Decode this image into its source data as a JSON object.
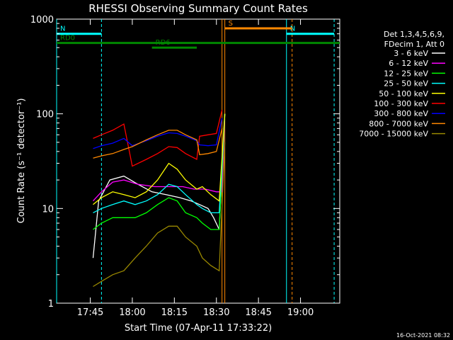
{
  "chart_data": {
    "type": "line",
    "title": "RHESSI Observing Summary Count Rates",
    "xlabel": "Start Time (07-Apr-11 17:33:22)",
    "ylabel": "Count Rate (s⁻¹ detector⁻¹)",
    "y_scale": "log",
    "ylim": [
      1,
      1000
    ],
    "xlim_minutes": [
      "17:33",
      "19:14"
    ],
    "x_tick_labels": [
      "17:45",
      "18:00",
      "18:15",
      "18:30",
      "18:45",
      "19:00"
    ],
    "y_tick_labels": [
      "1",
      "10",
      "100",
      "1000"
    ],
    "timestamp": "16-Oct-2021 08:32",
    "legend": {
      "header": [
        "Det 1,3,4,5,6,9,",
        "FDecim 1, Att 0"
      ],
      "placement": "right"
    },
    "series": [
      {
        "name": "3 - 6 keV",
        "color": "#ffffff",
        "points": [
          [
            "17:46",
            3
          ],
          [
            "17:48",
            12
          ],
          [
            "17:52",
            20
          ],
          [
            "17:57",
            22
          ],
          [
            "18:02",
            18
          ],
          [
            "18:07",
            15
          ],
          [
            "18:12",
            14
          ],
          [
            "18:17",
            13
          ],
          [
            "18:21",
            12
          ],
          [
            "18:24",
            11
          ],
          [
            "18:27",
            10
          ],
          [
            "18:29",
            8
          ],
          [
            "18:31",
            6
          ],
          [
            "18:33",
            100
          ]
        ]
      },
      {
        "name": "6 - 12 keV",
        "color": "#ff00ff",
        "points": [
          [
            "17:46",
            12
          ],
          [
            "17:49",
            15
          ],
          [
            "17:53",
            19
          ],
          [
            "17:57",
            20
          ],
          [
            "18:02",
            18
          ],
          [
            "18:08",
            17
          ],
          [
            "18:13",
            17
          ],
          [
            "18:18",
            17
          ],
          [
            "18:22",
            16
          ],
          [
            "18:26",
            16
          ],
          [
            "18:30",
            15
          ],
          [
            "18:32",
            15
          ],
          [
            "18:33",
            100
          ]
        ]
      },
      {
        "name": "12 - 25 keV",
        "color": "#00ff00",
        "points": [
          [
            "17:46",
            6
          ],
          [
            "17:49",
            7
          ],
          [
            "17:53",
            8
          ],
          [
            "17:57",
            8
          ],
          [
            "18:01",
            8
          ],
          [
            "18:05",
            9
          ],
          [
            "18:09",
            11
          ],
          [
            "18:13",
            13
          ],
          [
            "18:16",
            12
          ],
          [
            "18:19",
            9
          ],
          [
            "18:23",
            8
          ],
          [
            "18:25",
            7
          ],
          [
            "18:28",
            6
          ],
          [
            "18:31",
            6
          ],
          [
            "18:33",
            100
          ]
        ]
      },
      {
        "name": "25 - 50 keV",
        "color": "#00ffff",
        "points": [
          [
            "17:46",
            9
          ],
          [
            "17:49",
            10
          ],
          [
            "17:53",
            11
          ],
          [
            "17:57",
            12
          ],
          [
            "18:01",
            11
          ],
          [
            "18:05",
            12
          ],
          [
            "18:09",
            14
          ],
          [
            "18:13",
            18
          ],
          [
            "18:16",
            17
          ],
          [
            "18:19",
            14
          ],
          [
            "18:23",
            11
          ],
          [
            "18:25",
            10
          ],
          [
            "18:28",
            9
          ],
          [
            "18:31",
            9
          ],
          [
            "18:33",
            100
          ]
        ]
      },
      {
        "name": "50 - 100 keV",
        "color": "#ffff00",
        "points": [
          [
            "17:46",
            11
          ],
          [
            "17:49",
            13
          ],
          [
            "17:53",
            15
          ],
          [
            "17:57",
            14
          ],
          [
            "18:01",
            13
          ],
          [
            "18:05",
            15
          ],
          [
            "18:09",
            20
          ],
          [
            "18:13",
            30
          ],
          [
            "18:16",
            26
          ],
          [
            "18:19",
            20
          ],
          [
            "18:23",
            16
          ],
          [
            "18:25",
            17
          ],
          [
            "18:28",
            14
          ],
          [
            "18:31",
            12
          ],
          [
            "18:33",
            100
          ]
        ]
      },
      {
        "name": "100 - 300 keV",
        "color": "#ff0000",
        "points": [
          [
            "17:46",
            55
          ],
          [
            "17:49",
            60
          ],
          [
            "17:53",
            67
          ],
          [
            "17:57",
            78
          ],
          [
            "18:00",
            28
          ],
          [
            "18:05",
            33
          ],
          [
            "18:09",
            38
          ],
          [
            "18:13",
            45
          ],
          [
            "18:16",
            44
          ],
          [
            "18:19",
            38
          ],
          [
            "18:23",
            33
          ],
          [
            "18:24",
            58
          ],
          [
            "18:27",
            60
          ],
          [
            "18:30",
            62
          ],
          [
            "18:32",
            110
          ]
        ]
      },
      {
        "name": "300 - 800 keV",
        "color": "#0000ff",
        "points": [
          [
            "17:46",
            43
          ],
          [
            "17:49",
            46
          ],
          [
            "17:53",
            49
          ],
          [
            "17:57",
            55
          ],
          [
            "18:00",
            46
          ],
          [
            "18:05",
            52
          ],
          [
            "18:09",
            58
          ],
          [
            "18:13",
            63
          ],
          [
            "18:16",
            62
          ],
          [
            "18:19",
            58
          ],
          [
            "18:23",
            52
          ],
          [
            "18:24",
            47
          ],
          [
            "18:27",
            46
          ],
          [
            "18:30",
            47
          ],
          [
            "18:32",
            90
          ]
        ]
      },
      {
        "name": "800 - 7000 keV",
        "color": "#ff8800",
        "points": [
          [
            "17:46",
            34
          ],
          [
            "17:49",
            36
          ],
          [
            "17:53",
            38
          ],
          [
            "17:57",
            42
          ],
          [
            "18:00",
            45
          ],
          [
            "18:05",
            53
          ],
          [
            "18:09",
            60
          ],
          [
            "18:13",
            67
          ],
          [
            "18:16",
            67
          ],
          [
            "18:19",
            60
          ],
          [
            "18:23",
            53
          ],
          [
            "18:24",
            37
          ],
          [
            "18:27",
            38
          ],
          [
            "18:30",
            40
          ],
          [
            "18:32",
            70
          ]
        ]
      },
      {
        "name": "7000 - 15000 keV",
        "color": "#998800",
        "points": [
          [
            "17:46",
            1.5
          ],
          [
            "17:49",
            1.7
          ],
          [
            "17:53",
            2
          ],
          [
            "17:57",
            2.2
          ],
          [
            "18:01",
            3
          ],
          [
            "18:05",
            4
          ],
          [
            "18:09",
            5.5
          ],
          [
            "18:13",
            6.5
          ],
          [
            "18:16",
            6.5
          ],
          [
            "18:19",
            5
          ],
          [
            "18:23",
            4
          ],
          [
            "18:25",
            3
          ],
          [
            "18:28",
            2.5
          ],
          [
            "18:31",
            2.2
          ],
          [
            "18:33",
            50
          ]
        ]
      }
    ],
    "flags": [
      {
        "label": "N",
        "color": "#00ffff",
        "level": 700,
        "start": "17:33",
        "end": "17:49"
      },
      {
        "label": "N",
        "color": "#00ffff",
        "level": 700,
        "start": "18:55",
        "end": "19:12"
      },
      {
        "label": "S",
        "color": "#ff8800",
        "level": 800,
        "start": "18:33",
        "end": "18:57"
      },
      {
        "label": "RD0",
        "color": "#008800",
        "level": 560,
        "start": "17:33",
        "end": "19:14"
      },
      {
        "label": "RD6",
        "color": "#008800",
        "level": 500,
        "start": "18:07",
        "end": "18:23"
      }
    ],
    "vertical_markers": [
      {
        "time": "17:33",
        "color": "#00ffff",
        "style": "solid"
      },
      {
        "time": "17:49",
        "color": "#00ffff",
        "style": "dashed"
      },
      {
        "time": "18:32",
        "color": "#ff8800",
        "style": "solid"
      },
      {
        "time": "18:33",
        "color": "#ff8800",
        "style": "solid"
      },
      {
        "time": "18:55",
        "color": "#00ffff",
        "style": "solid"
      },
      {
        "time": "18:57",
        "color": "#ff8800",
        "style": "dashed"
      },
      {
        "time": "19:12",
        "color": "#00ffff",
        "style": "dashed"
      }
    ]
  }
}
